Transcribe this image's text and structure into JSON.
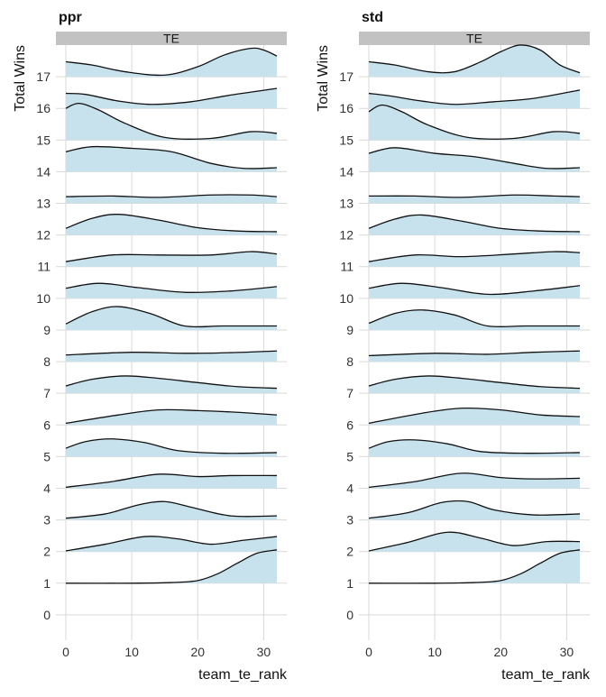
{
  "chart_data": [
    {
      "type": "ridgeline",
      "title": "ppr",
      "facet_label": "TE",
      "xlabel": "team_te_rank",
      "ylabel": "Total Wins",
      "xlim": [
        -1.5,
        33.5
      ],
      "ylim": [
        -0.8,
        18.0
      ],
      "x_ticks": [
        0,
        10,
        20,
        30
      ],
      "y_ticks": [
        0,
        1,
        2,
        3,
        4,
        5,
        6,
        7,
        8,
        9,
        10,
        11,
        12,
        13,
        14,
        15,
        16,
        17
      ],
      "x_range": [
        0,
        32
      ],
      "ridges": [
        {
          "wins": 1,
          "x": [
            0,
            10,
            16,
            20,
            23,
            26,
            29,
            32
          ],
          "density": [
            0,
            0,
            0.02,
            0.08,
            0.28,
            0.6,
            0.9,
            1.0
          ]
        },
        {
          "wins": 2,
          "x": [
            0,
            6,
            12,
            17,
            22,
            27,
            32
          ],
          "density": [
            0.02,
            0.22,
            0.45,
            0.38,
            0.22,
            0.34,
            0.45
          ]
        },
        {
          "wins": 3,
          "x": [
            0,
            6,
            11,
            15,
            19,
            25,
            32
          ],
          "density": [
            0.05,
            0.18,
            0.45,
            0.55,
            0.38,
            0.12,
            0.12
          ]
        },
        {
          "wins": 4,
          "x": [
            0,
            7,
            14,
            20,
            25,
            32
          ],
          "density": [
            0.03,
            0.2,
            0.42,
            0.35,
            0.38,
            0.38
          ]
        },
        {
          "wins": 5,
          "x": [
            0,
            3,
            7,
            12,
            17,
            24,
            32
          ],
          "density": [
            0.25,
            0.45,
            0.53,
            0.42,
            0.18,
            0.1,
            0.12
          ]
        },
        {
          "wins": 6,
          "x": [
            0,
            8,
            14,
            20,
            26,
            32
          ],
          "density": [
            0.05,
            0.3,
            0.45,
            0.43,
            0.38,
            0.3
          ]
        },
        {
          "wins": 7,
          "x": [
            0,
            4,
            9,
            14,
            20,
            26,
            32
          ],
          "density": [
            0.22,
            0.42,
            0.52,
            0.45,
            0.32,
            0.2,
            0.15
          ]
        },
        {
          "wins": 8,
          "x": [
            0,
            10,
            18,
            25,
            32
          ],
          "density": [
            0.2,
            0.28,
            0.25,
            0.27,
            0.32
          ]
        },
        {
          "wins": 9,
          "x": [
            0,
            4,
            8,
            13,
            18,
            24,
            32
          ],
          "density": [
            0.18,
            0.55,
            0.7,
            0.48,
            0.12,
            0.12,
            0.12
          ]
        },
        {
          "wins": 10,
          "x": [
            0,
            5,
            11,
            18,
            25,
            32
          ],
          "density": [
            0.3,
            0.45,
            0.32,
            0.18,
            0.22,
            0.35
          ]
        },
        {
          "wins": 11,
          "x": [
            0,
            7,
            14,
            22,
            28,
            32
          ],
          "density": [
            0.15,
            0.35,
            0.35,
            0.35,
            0.45,
            0.38
          ]
        },
        {
          "wins": 12,
          "x": [
            0,
            4,
            8,
            14,
            20,
            26,
            32
          ],
          "density": [
            0.2,
            0.5,
            0.62,
            0.45,
            0.22,
            0.12,
            0.1
          ]
        },
        {
          "wins": 13,
          "x": [
            0,
            7,
            14,
            22,
            28,
            32
          ],
          "density": [
            0.2,
            0.22,
            0.18,
            0.25,
            0.25,
            0.2
          ]
        },
        {
          "wins": 14,
          "x": [
            0,
            4,
            10,
            16,
            22,
            27,
            32
          ],
          "density": [
            0.6,
            0.75,
            0.7,
            0.6,
            0.25,
            0.1,
            0.12
          ]
        },
        {
          "wins": 15,
          "x": [
            0,
            2,
            5,
            9,
            15,
            22,
            28,
            32
          ],
          "density": [
            0.95,
            1.1,
            0.9,
            0.5,
            0.08,
            0.05,
            0.25,
            0.2
          ]
        },
        {
          "wins": 16,
          "x": [
            0,
            3,
            8,
            13,
            19,
            25,
            32
          ],
          "density": [
            0.45,
            0.42,
            0.22,
            0.12,
            0.2,
            0.4,
            0.6
          ]
        },
        {
          "wins": 17,
          "x": [
            0,
            4,
            9,
            15,
            20,
            24,
            28,
            30,
            32
          ],
          "density": [
            0.45,
            0.35,
            0.15,
            0.05,
            0.3,
            0.65,
            0.85,
            0.8,
            0.62
          ]
        }
      ]
    },
    {
      "type": "ridgeline",
      "title": "std",
      "facet_label": "TE",
      "xlabel": "team_te_rank",
      "ylabel": "Total Wins",
      "xlim": [
        -1.5,
        33.5
      ],
      "ylim": [
        -0.8,
        18.0
      ],
      "x_ticks": [
        0,
        10,
        20,
        30
      ],
      "y_ticks": [
        0,
        1,
        2,
        3,
        4,
        5,
        6,
        7,
        8,
        9,
        10,
        11,
        12,
        13,
        14,
        15,
        16,
        17
      ],
      "x_range": [
        0,
        32
      ],
      "ridges": [
        {
          "wins": 1,
          "x": [
            0,
            10,
            16,
            20,
            23,
            26,
            29,
            32
          ],
          "density": [
            0,
            0,
            0.02,
            0.08,
            0.28,
            0.6,
            0.9,
            1.0
          ]
        },
        {
          "wins": 2,
          "x": [
            0,
            6,
            12,
            17,
            22,
            27,
            32
          ],
          "density": [
            0.02,
            0.28,
            0.58,
            0.4,
            0.18,
            0.3,
            0.3
          ]
        },
        {
          "wins": 3,
          "x": [
            0,
            6,
            11,
            15,
            19,
            25,
            32
          ],
          "density": [
            0.05,
            0.22,
            0.52,
            0.55,
            0.3,
            0.15,
            0.18
          ]
        },
        {
          "wins": 4,
          "x": [
            0,
            7,
            14,
            20,
            25,
            32
          ],
          "density": [
            0.03,
            0.2,
            0.45,
            0.32,
            0.28,
            0.3
          ]
        },
        {
          "wins": 5,
          "x": [
            0,
            3,
            7,
            12,
            17,
            24,
            32
          ],
          "density": [
            0.25,
            0.45,
            0.5,
            0.38,
            0.15,
            0.1,
            0.12
          ]
        },
        {
          "wins": 6,
          "x": [
            0,
            8,
            14,
            20,
            26,
            32
          ],
          "density": [
            0.05,
            0.35,
            0.5,
            0.45,
            0.3,
            0.25
          ]
        },
        {
          "wins": 7,
          "x": [
            0,
            4,
            9,
            14,
            20,
            26,
            32
          ],
          "density": [
            0.22,
            0.42,
            0.52,
            0.45,
            0.32,
            0.2,
            0.15
          ]
        },
        {
          "wins": 8,
          "x": [
            0,
            10,
            18,
            25,
            32
          ],
          "density": [
            0.18,
            0.25,
            0.22,
            0.28,
            0.32
          ]
        },
        {
          "wins": 9,
          "x": [
            0,
            4,
            8,
            13,
            18,
            24,
            32
          ],
          "density": [
            0.2,
            0.5,
            0.6,
            0.45,
            0.12,
            0.12,
            0.12
          ]
        },
        {
          "wins": 10,
          "x": [
            0,
            5,
            11,
            18,
            25,
            32
          ],
          "density": [
            0.3,
            0.45,
            0.32,
            0.12,
            0.22,
            0.38
          ]
        },
        {
          "wins": 11,
          "x": [
            0,
            7,
            14,
            22,
            28,
            32
          ],
          "density": [
            0.15,
            0.35,
            0.3,
            0.38,
            0.45,
            0.42
          ]
        },
        {
          "wins": 12,
          "x": [
            0,
            4,
            8,
            14,
            20,
            26,
            32
          ],
          "density": [
            0.2,
            0.48,
            0.6,
            0.42,
            0.2,
            0.12,
            0.1
          ]
        },
        {
          "wins": 13,
          "x": [
            0,
            7,
            14,
            22,
            28,
            32
          ],
          "density": [
            0.22,
            0.22,
            0.18,
            0.25,
            0.22,
            0.2
          ]
        },
        {
          "wins": 14,
          "x": [
            0,
            4,
            10,
            16,
            22,
            27,
            32
          ],
          "density": [
            0.55,
            0.72,
            0.55,
            0.45,
            0.25,
            0.1,
            0.12
          ]
        },
        {
          "wins": 15,
          "x": [
            0,
            2,
            5,
            9,
            15,
            22,
            28,
            32
          ],
          "density": [
            0.85,
            1.05,
            0.85,
            0.45,
            0.08,
            0.05,
            0.25,
            0.2
          ]
        },
        {
          "wins": 16,
          "x": [
            0,
            3,
            8,
            13,
            19,
            25,
            32
          ],
          "density": [
            0.45,
            0.38,
            0.22,
            0.12,
            0.2,
            0.3,
            0.55
          ]
        },
        {
          "wins": 17,
          "x": [
            0,
            4,
            9,
            13,
            17,
            20,
            23,
            26,
            29,
            32
          ],
          "density": [
            0.45,
            0.35,
            0.15,
            0.15,
            0.45,
            0.75,
            0.95,
            0.8,
            0.35,
            0.12
          ]
        }
      ]
    }
  ],
  "style": {
    "fill_color": "#c7e2ec",
    "line_color": "#111111",
    "strip_color": "#c2c2c2",
    "grid_color": "#d9d9d9"
  }
}
